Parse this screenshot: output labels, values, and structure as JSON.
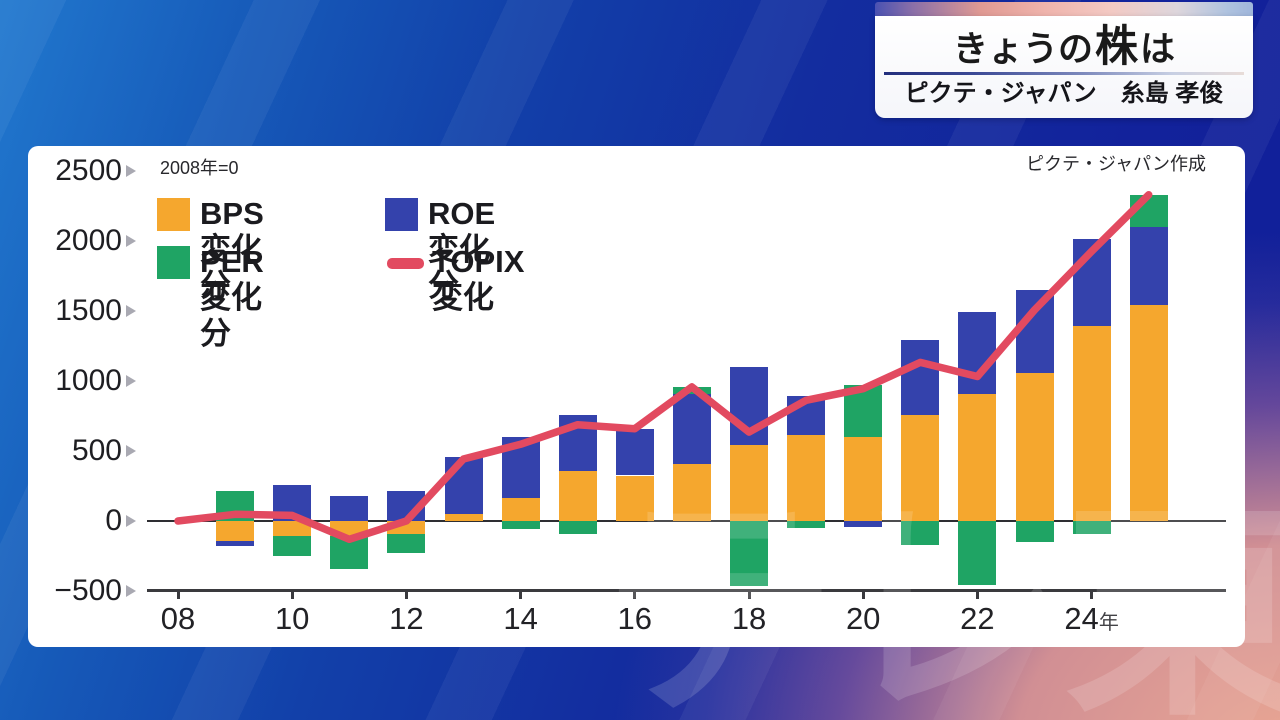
{
  "header": {
    "title_prefix": "きょうの",
    "title_emph": "株",
    "title_suffix": "は",
    "subtitle": "ピクテ・ジャパン　糸島 孝俊"
  },
  "panel_notes": {
    "baseline_note": "2008年=0",
    "source_note": "ピクテ・ジャパン作成"
  },
  "legend": {
    "items": [
      {
        "label": "BPS変化分",
        "color": "#F5A72E",
        "type": "square"
      },
      {
        "label": "ROE変化分",
        "color": "#3442AC",
        "type": "square"
      },
      {
        "label": "PER変化分",
        "color": "#1FA464",
        "type": "square"
      },
      {
        "label": "TOPIX変化",
        "color": "#E24A60",
        "type": "dash"
      }
    ]
  },
  "watermark_text": "テレ東",
  "chart_data": {
    "type": "bar",
    "stacked": true,
    "title": "きょうの株は",
    "baseline": "2008年=0",
    "source": "ピクテ・ジャパン作成",
    "x": [
      "08",
      "09",
      "10",
      "11",
      "12",
      "13",
      "14",
      "15",
      "16",
      "17",
      "18",
      "19",
      "20",
      "21",
      "22",
      "23",
      "24",
      "25"
    ],
    "series": [
      {
        "key": "bps",
        "name": "BPS変化分",
        "color": "#F5A72E",
        "values": [
          0,
          -145,
          -110,
          -105,
          -90,
          50,
          165,
          355,
          325,
          410,
          545,
          615,
          600,
          760,
          910,
          1060,
          1395,
          1545
        ]
      },
      {
        "key": "roe",
        "name": "ROE変化分",
        "color": "#3442AC",
        "values": [
          0,
          -35,
          260,
          180,
          215,
          405,
          435,
          405,
          330,
          500,
          555,
          275,
          -45,
          535,
          580,
          590,
          620,
          555
        ]
      },
      {
        "key": "per",
        "name": "PER変化分",
        "color": "#1FA464",
        "values": [
          0,
          215,
          -140,
          -240,
          -140,
          0,
          -60,
          -90,
          0,
          48,
          -465,
          -50,
          370,
          -170,
          -460,
          -150,
          -90,
          230
        ]
      }
    ],
    "line_series": {
      "key": "topix",
      "name": "TOPIX変化",
      "color": "#E24A60",
      "values": [
        0,
        48,
        40,
        -131,
        1,
        443,
        548,
        688,
        659,
        958,
        635,
        862,
        945,
        1133,
        1032,
        1507,
        1926,
        2330
      ]
    },
    "ylim": [
      -500,
      2500
    ],
    "yticks": [
      2500,
      2000,
      1500,
      1000,
      500,
      0,
      -500
    ],
    "xticks": [
      {
        "index": 0,
        "label": "08"
      },
      {
        "index": 2,
        "label": "10"
      },
      {
        "index": 4,
        "label": "12"
      },
      {
        "index": 6,
        "label": "14"
      },
      {
        "index": 8,
        "label": "16"
      },
      {
        "index": 10,
        "label": "18"
      },
      {
        "index": 12,
        "label": "20"
      },
      {
        "index": 14,
        "label": "22"
      },
      {
        "index": 16,
        "label": "24",
        "suffix": "年"
      }
    ],
    "grid": false,
    "legend_position": "top-left-inside"
  }
}
